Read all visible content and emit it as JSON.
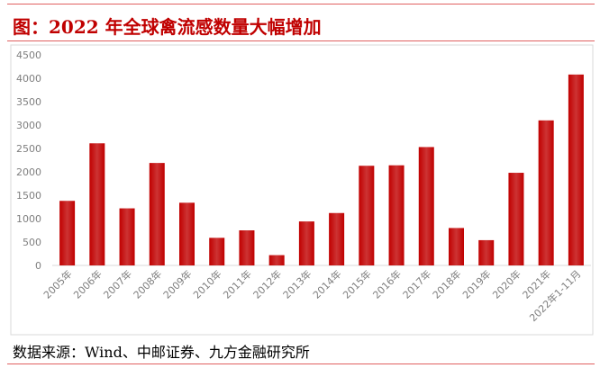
{
  "title": "图：2022 年全球禽流感数量大幅增加",
  "source": "数据来源：Wind、中邮证券、九方金融研究所",
  "chart_data": {
    "type": "bar",
    "categories": [
      "2005年",
      "2006年",
      "2007年",
      "2008年",
      "2009年",
      "2010年",
      "2011年",
      "2012年",
      "2013年",
      "2014年",
      "2015年",
      "2016年",
      "2017年",
      "2018年",
      "2019年",
      "2020年",
      "2021年",
      "2022年1-11月"
    ],
    "values": [
      1380,
      2610,
      1220,
      2190,
      1340,
      590,
      750,
      220,
      940,
      1120,
      2130,
      2140,
      2530,
      800,
      540,
      1980,
      3100,
      4080
    ],
    "color": "#c00000",
    "ylim": [
      0,
      4500
    ],
    "yticks": [
      0,
      500,
      1000,
      1500,
      2000,
      2500,
      3000,
      3500,
      4000,
      4500
    ],
    "grid": false
  }
}
